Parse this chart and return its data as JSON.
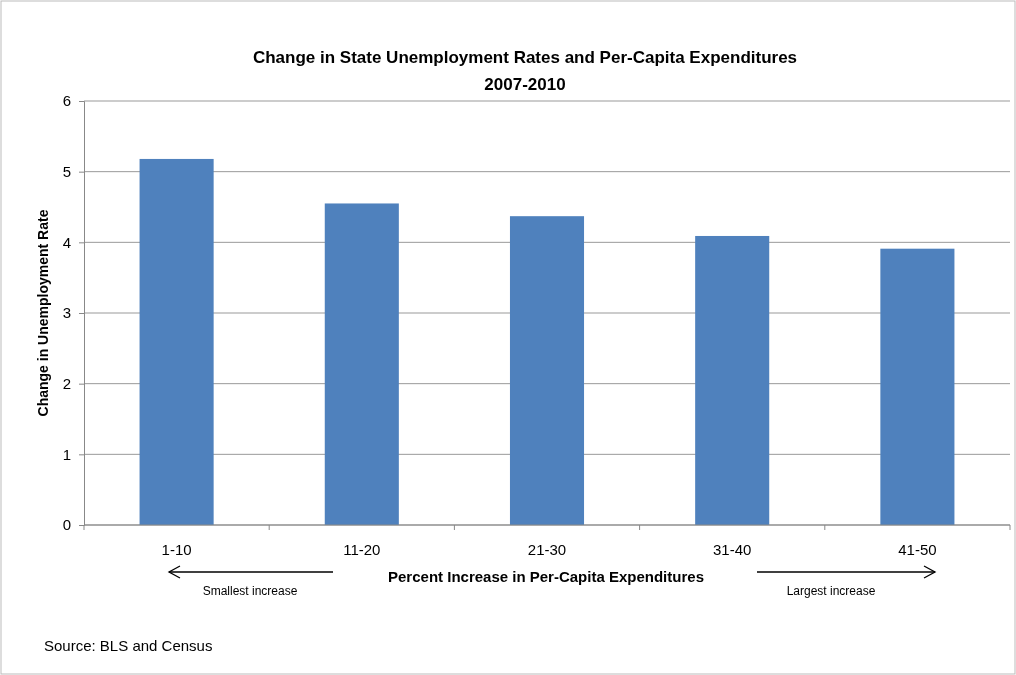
{
  "chart_data": {
    "type": "bar",
    "title": "Change in State Unemployment Rates and Per-Capita Expenditures",
    "subtitle": "2007-2010",
    "xlabel": "Percent Increase in Per-Capita Expenditures",
    "ylabel": "Change in Unemployment Rate",
    "categories": [
      "1-10",
      "11-20",
      "21-30",
      "31-40",
      "41-50"
    ],
    "values": [
      5.18,
      4.55,
      4.37,
      4.09,
      3.91
    ],
    "color": "#4f81bd",
    "ylim": [
      0,
      6
    ],
    "yticks": [
      0,
      1,
      2,
      3,
      4,
      5,
      6
    ],
    "grid": "y",
    "annotations": [
      "Smallest increase",
      "Largest increase",
      "Source: BLS and Census"
    ]
  }
}
